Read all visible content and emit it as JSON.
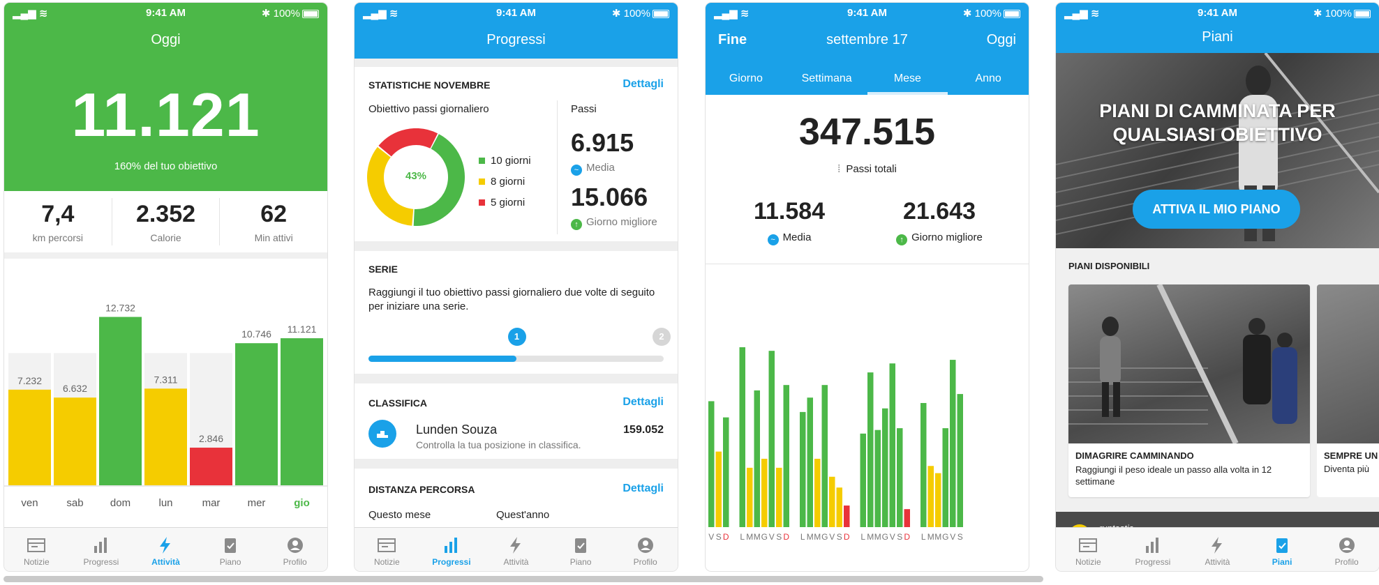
{
  "status": {
    "time": "9:41 AM",
    "battery": "100%"
  },
  "tabs": [
    "Notizie",
    "Progressi",
    "Attività",
    "Piano",
    "Profilo"
  ],
  "tabs_plans": [
    "Notizie",
    "Progressi",
    "Attività",
    "Piani",
    "Profilo"
  ],
  "screen1": {
    "title": "Oggi",
    "steps": "11.121",
    "goal_text": "160% del tuo obiettivo",
    "stats": [
      {
        "value": "7,4",
        "label": "km percorsi"
      },
      {
        "value": "2.352",
        "label": "Calorie"
      },
      {
        "value": "62",
        "label": "Min attivi"
      }
    ],
    "chart_data": {
      "type": "bar",
      "categories": [
        "ven",
        "sab",
        "dom",
        "lun",
        "mar",
        "mer",
        "gio"
      ],
      "values": [
        7232,
        6632,
        12732,
        7311,
        2846,
        10746,
        11121
      ],
      "value_labels": [
        "7.232",
        "6.632",
        "12.732",
        "7.311",
        "2.846",
        "10.746",
        "11.121"
      ],
      "goal": 10000,
      "colors": [
        "#f5cc00",
        "#f5cc00",
        "#4cb848",
        "#f5cc00",
        "#e8323a",
        "#4cb848",
        "#4cb848"
      ]
    },
    "accent": "#4cb848"
  },
  "screen2": {
    "title": "Progressi",
    "stats_title": "STATISTICHE NOVEMBRE",
    "details": "Dettagli",
    "goal_label": "Obiettivo passi giornaliero",
    "donut_pct": "43%",
    "donut": [
      {
        "label": "10 giorni",
        "days": 10,
        "color": "#4cb848"
      },
      {
        "label": "8 giorni",
        "days": 8,
        "color": "#f5cc00"
      },
      {
        "label": "5 giorni",
        "days": 5,
        "color": "#e8323a"
      }
    ],
    "steps_label": "Passi",
    "avg_value": "6.915",
    "avg_label": "Media",
    "best_value": "15.066",
    "best_label": "Giorno migliore",
    "series_title": "SERIE",
    "series_text": "Raggiungi il tuo obiettivo passi giornaliero due volte di seguito per iniziare una serie.",
    "series_progress": 0.5,
    "series_marks": [
      "1",
      "2"
    ],
    "ranking_title": "CLASSIFICA",
    "ranking_name": "Lunden Souza",
    "ranking_sub": "Controlla la tua posizione in classifica.",
    "ranking_value": "159.052",
    "distance_title": "DISTANZA PERCORSA",
    "this_month": "Questo mese",
    "this_year": "Quest'anno"
  },
  "screen3": {
    "left": "Fine",
    "title": "settembre 17",
    "right": "Oggi",
    "segments": [
      "Giorno",
      "Settimana",
      "Mese",
      "Anno"
    ],
    "active_segment": "Mese",
    "total": "347.515",
    "total_label": "Passi totali",
    "avg_value": "11.584",
    "avg_label": "Media",
    "best_value": "21.643",
    "best_label": "Giorno migliore",
    "chart_data": {
      "type": "bar",
      "groups": [
        {
          "days": [
            "V",
            "S",
            "D"
          ],
          "values": [
            0.7,
            0.42,
            0.61
          ]
        },
        {
          "days": [
            "L",
            "M",
            "M",
            "G",
            "V",
            "S",
            "D"
          ],
          "values": [
            1.0,
            0.33,
            0.76,
            0.38,
            0.98,
            0.33,
            0.79
          ]
        },
        {
          "days": [
            "L",
            "M",
            "M",
            "G",
            "V",
            "S",
            "D"
          ],
          "values": [
            0.64,
            0.72,
            0.38,
            0.79,
            0.28,
            0.22,
            0.12
          ]
        },
        {
          "days": [
            "L",
            "M",
            "M",
            "G",
            "V",
            "S",
            "D"
          ],
          "values": [
            0.52,
            0.86,
            0.54,
            0.66,
            0.91,
            0.55,
            0.1
          ]
        },
        {
          "days": [
            "L",
            "M",
            "M",
            "G",
            "V",
            "S"
          ],
          "values": [
            0.69,
            0.34,
            0.3,
            0.55,
            0.93,
            0.74
          ]
        }
      ]
    }
  },
  "screen4": {
    "title": "Piani",
    "hero_title": "PIANI DI CAMMINATA PER QUALSIASI OBIETTIVO",
    "hero_button": "ATTIVA IL MIO PIANO",
    "available": "PIANI DISPONIBILI",
    "cards": [
      {
        "title": "DIMAGRIRE CAMMINANDO",
        "text": "Raggiungi il peso ideale un passo alla volta in 12 settimane"
      },
      {
        "title": "SEMPRE UN",
        "text": "Diventa più"
      }
    ],
    "promo_brand": "runtastic"
  },
  "colors": {
    "blue": "#1aa1e8",
    "green": "#4cb848",
    "yellow": "#f5cc00",
    "red": "#e8323a"
  }
}
